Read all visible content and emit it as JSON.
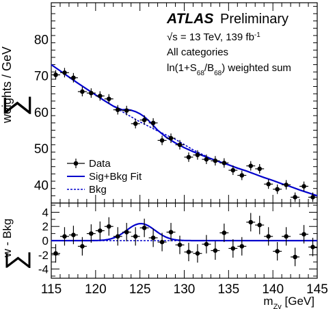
{
  "chart_data": [
    {
      "type": "scatter",
      "panel": "main",
      "ylabel": "∑ weights / GeV",
      "xlim": [
        115,
        145
      ],
      "ylim": [
        35,
        90
      ],
      "yticks": [
        40,
        50,
        60,
        70,
        80
      ],
      "legend_placement": "bottom-left",
      "legend": [
        {
          "key": "data",
          "label": "Data"
        },
        {
          "key": "fit",
          "label": "Sig+Bkg Fit"
        },
        {
          "key": "bkg",
          "label": "Bkg"
        }
      ],
      "annotations": {
        "experiment": "ATLAS",
        "status": "Preliminary",
        "sqrt": "√s",
        "energy_lumi": " = 13 TeV, 139 fb",
        "lumi_exp": "-1",
        "categories": "All categories",
        "weight_pre": "ln(1+S",
        "weight_sub1": "68",
        "weight_mid": "/B",
        "weight_sub2": "68",
        "weight_post": ") weighted sum"
      },
      "series": [
        {
          "name": "Data",
          "x": [
            115.5,
            116.5,
            117.5,
            118.5,
            119.5,
            120.5,
            121.5,
            122.5,
            123.5,
            124.5,
            125.5,
            126.5,
            127.5,
            128.5,
            129.5,
            130.5,
            131.5,
            132.5,
            133.5,
            134.5,
            135.5,
            136.5,
            137.5,
            138.5,
            139.5,
            140.5,
            141.5,
            142.5,
            143.5,
            144.5
          ],
          "y": [
            70.2,
            70.8,
            69.4,
            65.6,
            65.2,
            64.4,
            63.6,
            60.6,
            60.4,
            56.8,
            57.8,
            57.0,
            52.2,
            52.8,
            51.0,
            47.6,
            48.2,
            47.0,
            46.6,
            46.0,
            44.0,
            42.6,
            45.2,
            44.4,
            40.2,
            38.8,
            40.0,
            36.6,
            39.6,
            36.6
          ],
          "yerr": [
            1.3,
            1.3,
            1.3,
            1.3,
            1.3,
            1.3,
            1.3,
            1.3,
            1.3,
            1.3,
            1.3,
            1.3,
            1.3,
            1.3,
            1.3,
            1.3,
            1.3,
            1.3,
            1.3,
            1.3,
            1.3,
            1.3,
            1.3,
            1.3,
            1.3,
            1.3,
            1.3,
            1.3,
            1.3,
            1.3
          ]
        },
        {
          "name": "Sig+Bkg Fit",
          "x": [
            115,
            116,
            117,
            118,
            119,
            120,
            121,
            122,
            123,
            123.5,
            124,
            124.5,
            125,
            125.5,
            126,
            126.5,
            127,
            128,
            129,
            130,
            131,
            132,
            133,
            134,
            135,
            136,
            137,
            138,
            139,
            140,
            141,
            142,
            143,
            144,
            145
          ],
          "y": [
            73.0,
            71.3,
            69.6,
            67.9,
            66.3,
            64.7,
            63.1,
            61.6,
            60.6,
            60.7,
            60.5,
            60.1,
            59.5,
            58.7,
            57.6,
            56.3,
            55.0,
            53.0,
            51.5,
            50.2,
            49.1,
            48.1,
            47.2,
            46.3,
            45.5,
            44.6,
            43.8,
            42.9,
            42.0,
            41.2,
            40.3,
            39.5,
            38.6,
            37.8,
            37.0
          ]
        },
        {
          "name": "Bkg",
          "x": [
            115,
            117,
            119,
            121,
            123,
            125,
            127,
            129,
            131,
            133,
            135,
            137,
            139,
            141,
            143,
            145
          ],
          "y": [
            73.0,
            69.6,
            66.3,
            63.1,
            60.1,
            57.3,
            54.8,
            52.5,
            49.6,
            47.2,
            45.5,
            43.8,
            42.0,
            40.3,
            38.6,
            37.0
          ]
        }
      ]
    },
    {
      "type": "scatter",
      "panel": "residual",
      "ylabel": "∑ w - Bkg",
      "xlabel": "m",
      "xlabel_sub": "Zγ",
      "xlabel_unit": " [GeV]",
      "xlim": [
        115,
        145
      ],
      "ylim": [
        -5.3,
        5.3
      ],
      "xticks": [
        115,
        120,
        125,
        130,
        135,
        140,
        145
      ],
      "yticks": [
        -4,
        -2,
        0,
        2,
        4
      ],
      "series": [
        {
          "name": "Data",
          "x": [
            115.5,
            116.5,
            117.5,
            118.5,
            119.5,
            120.5,
            121.5,
            122.5,
            123.5,
            124.5,
            125.5,
            126.5,
            127.5,
            128.5,
            129.5,
            130.5,
            131.5,
            132.5,
            133.5,
            134.5,
            135.5,
            136.5,
            137.5,
            138.5,
            139.5,
            140.5,
            141.5,
            142.5,
            143.5,
            144.5
          ],
          "y": [
            -1.8,
            0.6,
            0.8,
            -0.8,
            1.0,
            1.4,
            2.0,
            0.6,
            1.2,
            0.6,
            1.8,
            0.4,
            -0.2,
            1.2,
            -0.6,
            -1.6,
            -1.8,
            -0.5,
            -1.4,
            1.1,
            -1.1,
            -0.8,
            2.6,
            2.2,
            0.6,
            -1.5,
            0.6,
            -2.3,
            0.9,
            -0.9
          ],
          "yerr": [
            1.3,
            1.3,
            1.3,
            1.3,
            1.3,
            1.3,
            1.3,
            1.3,
            1.3,
            1.3,
            1.3,
            1.3,
            1.3,
            1.3,
            1.3,
            1.3,
            1.3,
            1.3,
            1.3,
            1.3,
            1.3,
            1.3,
            1.3,
            1.3,
            1.3,
            1.3,
            1.3,
            1.3,
            1.3,
            1.3
          ]
        },
        {
          "name": "Sig+Bkg Fit",
          "peak_x": 125.1,
          "peak_y": 2.4,
          "width": 1.6
        },
        {
          "name": "Bkg",
          "y": 0
        }
      ]
    }
  ]
}
